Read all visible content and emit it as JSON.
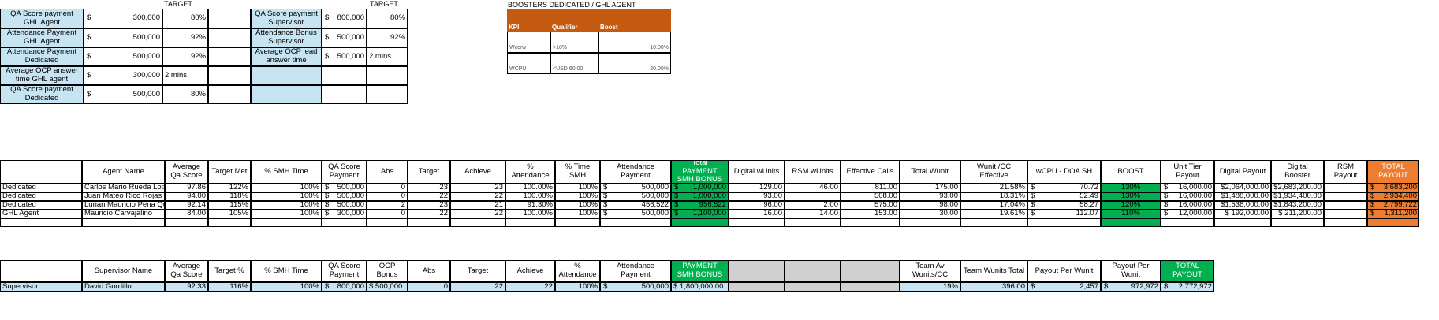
{
  "colors": {
    "lightblue": "#c6e4f1",
    "orange_header": "#c55a11",
    "green": "#00b050",
    "orange_total": "#ed7d31",
    "grey": "#d0d0d0"
  },
  "top_left": {
    "target1_label": "TARGET",
    "target2_label": "TARGET",
    "left_rows": [
      {
        "label": "QA Score payment GHL Agent",
        "cur": "$",
        "amount": "300,000",
        "pct": "80%"
      },
      {
        "label": "Attendance Payment GHL Agent",
        "cur": "$",
        "amount": "500,000",
        "pct": "92%"
      },
      {
        "label": "Attendance Payment Dedicated",
        "cur": "$",
        "amount": "500,000",
        "pct": "92%"
      },
      {
        "label": "Average OCP answer time GHL agent",
        "cur": "$",
        "amount": "300,000",
        "pct": "2 mins"
      },
      {
        "label": "QA Score payment Dedicated",
        "cur": "$",
        "amount": "500,000",
        "pct": "80%"
      }
    ],
    "right_rows": [
      {
        "label": "QA Score payment Supervisor",
        "cur": "$",
        "amount": "800,000",
        "pct": "80%"
      },
      {
        "label": "Attendance Bonus Supervisor",
        "cur": "$",
        "amount": "500,000",
        "pct": "92%"
      },
      {
        "label": "Average OCP lead answer time",
        "cur": "$",
        "amount": "500,000",
        "pct": "2 mins"
      },
      {
        "label": "",
        "cur": "",
        "amount": "",
        "pct": ""
      },
      {
        "label": "",
        "cur": "",
        "amount": "",
        "pct": ""
      }
    ]
  },
  "boosters": {
    "title": "BOOSTERS DEDICATED / GHL AGENT",
    "headers": [
      "KPI",
      "Qualifier",
      "Boost"
    ],
    "rows": [
      {
        "kpi": "Wconv",
        "qual": ">18%",
        "boost": "10.00%"
      },
      {
        "kpi": "WCPU",
        "qual": "<USD 60.00",
        "boost": "20.00%"
      }
    ]
  },
  "agents": {
    "headers": [
      "",
      "Agent Name",
      "Average Qa Score",
      "Target Met",
      "% SMH Time",
      "QA Score Payment",
      "Abs",
      "Target",
      "Achieve",
      "% Attendance",
      "% Time SMH",
      "Attendance Payment",
      "Total PAYMENT SMH BONUS",
      "Digital wUnits",
      "RSM wUnits",
      "Effective Calls",
      "Total Wunit",
      "Wunit /CC Effective",
      "wCPU - DOA SH",
      "BOOST",
      "Unit Tier Payout",
      "Digital Payout",
      "Digital Booster",
      "RSM Payout",
      "TOTAL PAYOUT"
    ],
    "rows": [
      [
        "Dedicated",
        "Carlos Mario Rueda Lopez",
        "97.86",
        "122%",
        "100%",
        "500,000",
        "0",
        "23",
        "23",
        "100.00%",
        "100%",
        "500,000",
        "1,000,000",
        "129.00",
        "46.00",
        "811.00",
        "175.00",
        "21.58%",
        "70.72",
        "130%",
        "16,000.00",
        "$2,064,000.00",
        "$2,683,200.00",
        "",
        "3,683,200"
      ],
      [
        "Dedicated",
        "Juan Mateo Rico Rojas",
        "94.00",
        "118%",
        "100%",
        "500,000",
        "0",
        "22",
        "22",
        "100.00%",
        "100%",
        "500,000",
        "1,000,000",
        "93.00",
        "",
        "508.00",
        "93.00",
        "18.31%",
        "52.49",
        "130%",
        "16,000.00",
        "$1,488,000.00",
        "$1,934,400.00",
        "",
        "2,934,400"
      ],
      [
        "Dedicated",
        "Lurian Mauricio Pena Quintero",
        "92.14",
        "115%",
        "100%",
        "500,000",
        "2",
        "23",
        "21",
        "91.30%",
        "100%",
        "456,522",
        "956,522",
        "96.00",
        "2.00",
        "575.00",
        "98.00",
        "17.04%",
        "58.27",
        "120%",
        "16,000.00",
        "$1,536,000.00",
        "$1,843,200.00",
        "",
        "2,799,722"
      ],
      [
        "GHL Agent",
        "Mauricio Carvajalino",
        "84.00",
        "105%",
        "100%",
        "300,000",
        "0",
        "22",
        "22",
        "100.00%",
        "100%",
        "500,000",
        "1,100,000",
        "16.00",
        "14.00",
        "153.00",
        "30.00",
        "19.61%",
        "112.07",
        "110%",
        "12,000.00",
        "$ 192,000.00",
        "$ 211,200.00",
        "",
        "1,311,200"
      ]
    ]
  },
  "supervisor": {
    "headers": [
      "",
      "Supervisor Name",
      "Average Qa Score",
      "Target %",
      "% SMH Time",
      "QA Score Payment",
      "OCP Bonus",
      "Abs",
      "Target",
      "Achieve",
      "% Attendance",
      "Attendance Payment",
      "PAYMENT SMH BONUS",
      "",
      "",
      "",
      "Team Av Wunits/CC",
      "Team Wunits Total",
      "Payout Per Wunit",
      "Payout Per Wunit",
      "TOTAL PAYOUT"
    ],
    "row": [
      "Supervisor",
      "David Gordillo",
      "92.33",
      "116%",
      "100%",
      "800,000",
      "$ 500,000",
      "0",
      "22",
      "22",
      "100%",
      "500,000",
      "$ 1,800,000.00",
      "",
      "",
      "",
      "19%",
      "396.00",
      "2,457",
      "972,972",
      "2,772,972"
    ]
  }
}
